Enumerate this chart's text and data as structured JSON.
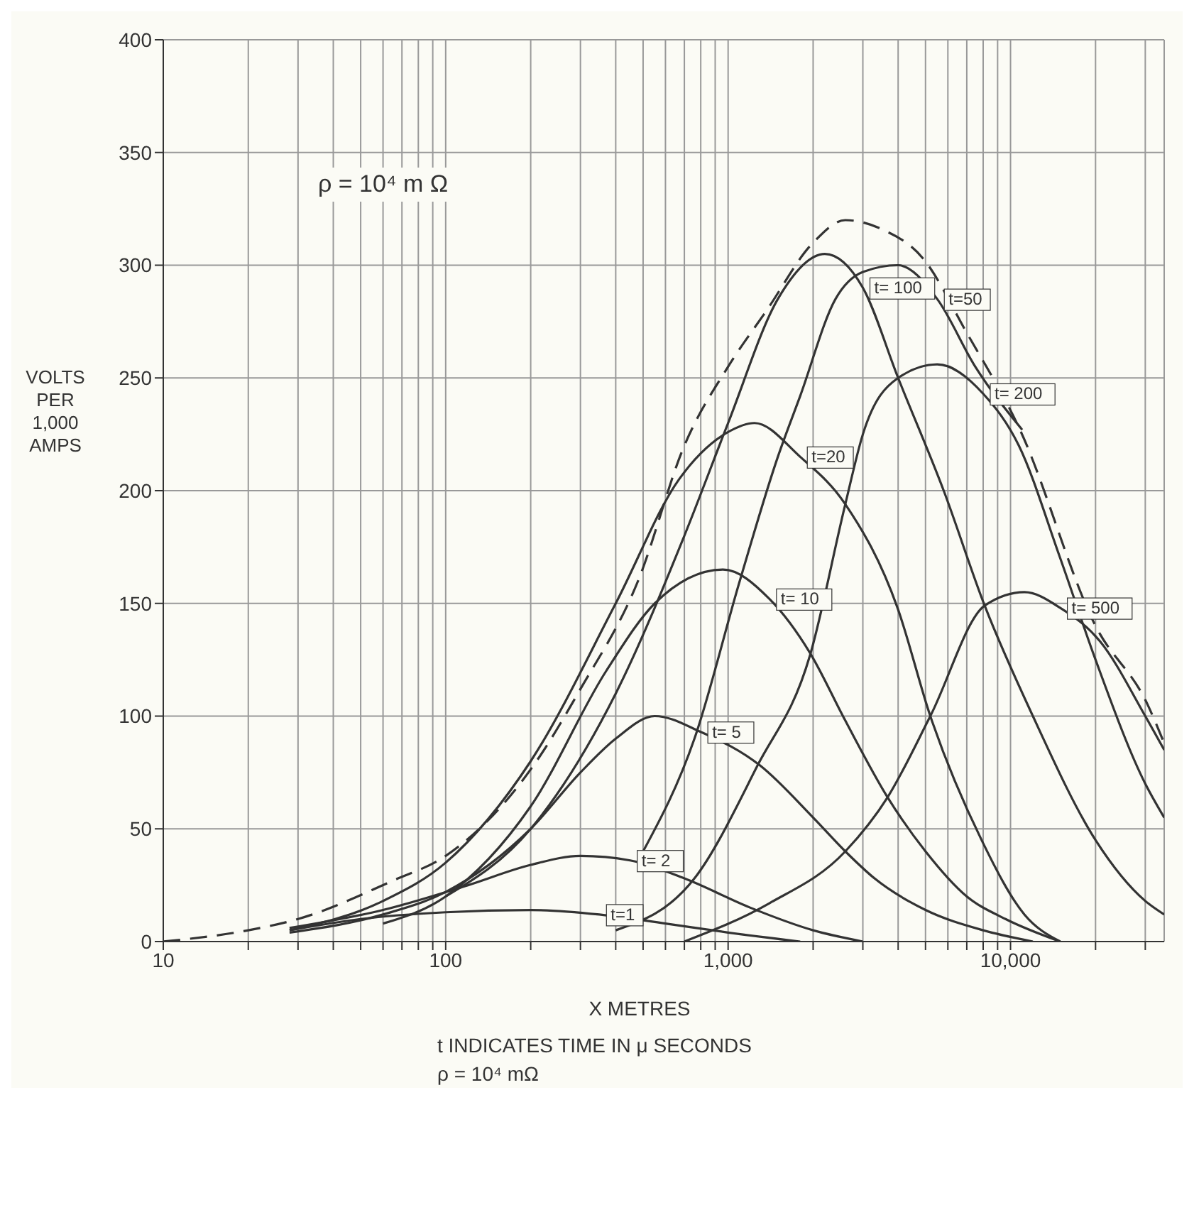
{
  "chart_data": {
    "type": "line",
    "xlabel": "X METRES",
    "ylabel": "VOLTS PER 1,000 AMPS",
    "log": "x",
    "grid": true,
    "marker": "none",
    "annotations": [
      "ρ = 10⁴ m Ω",
      "t INDICATES TIME IN μ SECONDS",
      "ρ = 10⁴ mΩ"
    ],
    "xlim": [
      10,
      35000
    ],
    "xticks": [
      10,
      {
        "value": 20,
        "label": null
      },
      {
        "value": 30,
        "label": null
      },
      {
        "value": 40,
        "label": null
      },
      {
        "value": 50,
        "label": null
      },
      {
        "value": 60,
        "label": null
      },
      {
        "value": 70,
        "label": null
      },
      {
        "value": 80,
        "label": null
      },
      {
        "value": 90,
        "label": null
      },
      100,
      {
        "value": 200,
        "label": null
      },
      {
        "value": 300,
        "label": null
      },
      {
        "value": 400,
        "label": null
      },
      {
        "value": 500,
        "label": null
      },
      {
        "value": 600,
        "label": null
      },
      {
        "value": 700,
        "label": null
      },
      {
        "value": 800,
        "label": null
      },
      {
        "value": 900,
        "label": null
      },
      {
        "value": 1000,
        "label": "1,000"
      },
      {
        "value": 2000,
        "label": null
      },
      {
        "value": 3000,
        "label": null
      },
      {
        "value": 4000,
        "label": null
      },
      {
        "value": 5000,
        "label": null
      },
      {
        "value": 6000,
        "label": null
      },
      {
        "value": 7000,
        "label": null
      },
      {
        "value": 8000,
        "label": null
      },
      {
        "value": 9000,
        "label": null
      },
      {
        "value": 10000,
        "label": "10,000"
      },
      {
        "value": 20000,
        "label": null
      },
      {
        "value": 30000,
        "label": null
      }
    ],
    "ylim": [
      0,
      400
    ],
    "yticks": [
      0,
      50,
      100,
      150,
      200,
      250,
      300,
      350,
      400
    ],
    "series": [
      {
        "color": "#333333",
        "line_style": "dashed",
        "x": [
          10,
          20,
          30,
          65,
          100,
          207,
          300,
          480,
          700,
          1000,
          1370,
          2000,
          2600,
          3500,
          4900,
          7000,
          10800,
          20000,
          30600,
          35000
        ],
        "values": [
          0,
          5,
          10,
          27,
          38,
          79,
          112,
          160,
          220,
          255,
          280,
          310,
          320,
          316,
          303,
          270,
          227,
          140,
          105,
          88
        ]
      },
      {
        "name": "t=1",
        "color": "#333333",
        "x": [
          28,
          50,
          100,
          200,
          350,
          600,
          1000,
          1800
        ],
        "values": [
          5,
          10,
          13,
          14,
          12,
          8,
          4,
          0
        ]
      },
      {
        "name": "t= 2",
        "color": "#333333",
        "x": [
          28,
          60,
          120,
          200,
          300,
          450,
          700,
          1200,
          2000,
          3000
        ],
        "values": [
          6,
          14,
          25,
          34,
          38,
          36,
          28,
          15,
          5,
          0
        ]
      },
      {
        "name": "t= 5",
        "color": "#333333",
        "x": [
          28,
          60,
          100,
          200,
          300,
          400,
          550,
          800,
          1300,
          2000,
          2600,
          3300,
          5000,
          8000,
          12000
        ],
        "values": [
          4,
          12,
          22,
          50,
          75,
          90,
          100,
          93,
          78,
          55,
          40,
          28,
          14,
          5,
          0
        ]
      },
      {
        "name": "t= 10",
        "color": "#333333",
        "x": [
          60,
          100,
          200,
          370,
          550,
          960,
          1400,
          1950,
          2600,
          3670,
          5000,
          7000,
          9600,
          15000
        ],
        "values": [
          8,
          20,
          60,
          120,
          150,
          165,
          152,
          128,
          98,
          64,
          40,
          20,
          10,
          0
        ]
      },
      {
        "name": "t=20",
        "color": "#333333",
        "x": [
          28,
          60,
          100,
          200,
          400,
          670,
          1000,
          1240,
          1800,
          2600,
          3980,
          5200,
          7900,
          11200,
          15000
        ],
        "values": [
          5,
          18,
          35,
          80,
          150,
          205,
          226,
          230,
          215,
          194,
          148,
          100,
          45,
          12,
          0
        ]
      },
      {
        "name": "t=50",
        "color": "#333333",
        "x": [
          500,
          760,
          1100,
          1500,
          1800,
          2400,
          3000,
          4000,
          5500,
          7500,
          11000
        ],
        "values": [
          40,
          90,
          160,
          215,
          242,
          285,
          297,
          300,
          285,
          255,
          227
        ]
      },
      {
        "name": "t= 100",
        "color": "#333333",
        "x": [
          100,
          200,
          400,
          700,
          1000,
          1500,
          2200,
          3000,
          4000,
          5800,
          8100,
          12000,
          20000,
          30000,
          35000
        ],
        "values": [
          20,
          50,
          110,
          180,
          230,
          285,
          305,
          290,
          250,
          200,
          149,
          100,
          45,
          18,
          12
        ]
      },
      {
        "name": "t= 200",
        "color": "#333333",
        "x": [
          400,
          760,
          1270,
          1950,
          2600,
          3000,
          4000,
          5500,
          8000,
          10700,
          15000,
          20000,
          30000,
          35000
        ],
        "values": [
          5,
          28,
          78,
          127,
          194,
          225,
          250,
          256,
          243,
          220,
          170,
          125,
          70,
          55
        ]
      },
      {
        "name": "t= 500",
        "color": "#333333",
        "x": [
          700,
          1400,
          2600,
          3670,
          5200,
          8100,
          11200,
          15000,
          20800,
          30000,
          35000
        ],
        "values": [
          0,
          17,
          40,
          64,
          100,
          149,
          155,
          148,
          133,
          100,
          85
        ]
      }
    ]
  }
}
